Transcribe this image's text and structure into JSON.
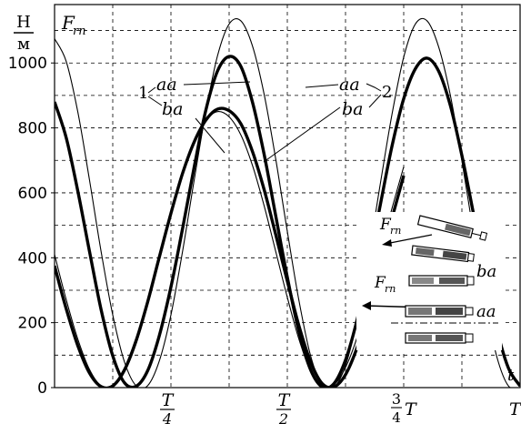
{
  "chart_data": {
    "type": "line",
    "ylabel_num": "Н",
    "ylabel_den": "м",
    "y_quantity": "F",
    "y_quantity_sub": "rn",
    "xlabel": "t",
    "yticks": [
      0,
      200,
      400,
      600,
      800,
      1000
    ],
    "xticks": [
      {
        "num": "T",
        "den": "4",
        "x": 0.25
      },
      {
        "num": "T",
        "den": "2",
        "x": 0.5
      },
      {
        "prefix_num": "3",
        "prefix_den": "4",
        "label": "T",
        "x": 0.75
      },
      {
        "label": "T",
        "x": 1.0
      }
    ],
    "xlim": [
      0,
      1
    ],
    "ylim": [
      0,
      1180
    ],
    "grid": true,
    "series": [
      {
        "group": "1",
        "name": "aa",
        "weight": "thin",
        "x": [
          0.0,
          0.025,
          0.05,
          0.075,
          0.1,
          0.125,
          0.15,
          0.175,
          0.2,
          0.225,
          0.25,
          0.275,
          0.3,
          0.325,
          0.35,
          0.375,
          0.4,
          0.425,
          0.45,
          0.475,
          0.5,
          0.525,
          0.55,
          0.575,
          0.6,
          0.625,
          0.65,
          0.675,
          0.7,
          0.725,
          0.75
        ],
        "y": [
          410,
          271,
          149,
          56,
          5,
          2,
          47,
          134,
          254,
          391,
          528,
          654,
          754,
          823,
          850,
          834,
          779,
          685,
          561,
          420,
          278,
          149,
          50,
          3,
          8,
          62,
          155,
          281,
          415,
          553,
          680
        ]
      },
      {
        "group": "1",
        "name": "ba",
        "weight": "thick",
        "x": [
          0.0,
          0.025,
          0.05,
          0.075,
          0.1,
          0.125,
          0.15,
          0.175,
          0.2,
          0.225,
          0.25,
          0.275,
          0.3,
          0.325,
          0.35,
          0.375,
          0.4,
          0.425,
          0.45,
          0.475,
          0.5,
          0.525,
          0.55,
          0.575,
          0.6,
          0.625,
          0.65,
          0.675,
          0.7,
          0.725,
          0.75
        ],
        "y": [
          375,
          243,
          129,
          45,
          3,
          5,
          54,
          144,
          264,
          402,
          537,
          660,
          757,
          824,
          858,
          853,
          813,
          728,
          611,
          472,
          328,
          190,
          79,
          12,
          2,
          40,
          124,
          243,
          380,
          522,
          653
        ]
      },
      {
        "group": "2",
        "name": "aa",
        "weight": "thin",
        "x": [
          0.0,
          0.025,
          0.05,
          0.075,
          0.1,
          0.125,
          0.15,
          0.175,
          0.2,
          0.225,
          0.25,
          0.275,
          0.3,
          0.325,
          0.35,
          0.375,
          0.4,
          0.425,
          0.45,
          0.475,
          0.5,
          0.525,
          0.55,
          0.575,
          0.6,
          0.625,
          0.65,
          0.675,
          0.7,
          0.725,
          0.75,
          0.775,
          0.8,
          0.825,
          0.85,
          0.875,
          0.9,
          0.925,
          0.95,
          0.975,
          1.0
        ],
        "y": [
          1075,
          1005,
          849,
          640,
          419,
          224,
          80,
          6,
          6,
          82,
          224,
          420,
          640,
          850,
          1022,
          1120,
          1130,
          1053,
          905,
          705,
          481,
          268,
          98,
          6,
          0,
          68,
          210,
          408,
          630,
          843,
          1018,
          1120,
          1130,
          1050,
          902,
          699,
          475,
          263,
          95,
          5,
          0
        ]
      },
      {
        "group": "2",
        "name": "ba",
        "weight": "thick",
        "x": [
          0.0,
          0.025,
          0.05,
          0.075,
          0.1,
          0.125,
          0.15,
          0.175,
          0.2,
          0.225,
          0.25,
          0.275,
          0.3,
          0.325,
          0.35,
          0.375,
          0.4,
          0.425,
          0.45,
          0.475,
          0.5,
          0.525,
          0.55,
          0.575,
          0.6,
          0.625,
          0.65,
          0.675,
          0.7,
          0.725,
          0.75,
          0.775,
          0.8,
          0.825,
          0.85,
          0.875,
          0.9,
          0.925,
          0.95,
          0.975,
          1.0
        ],
        "y": [
          880,
          770,
          605,
          420,
          240,
          98,
          15,
          4,
          52,
          160,
          310,
          490,
          680,
          855,
          975,
          1020,
          990,
          880,
          720,
          530,
          340,
          172,
          55,
          2,
          12,
          85,
          210,
          378,
          565,
          745,
          890,
          982,
          1015,
          975,
          870,
          715,
          535,
          350,
          180,
          60,
          5
        ]
      }
    ],
    "annotations": {
      "group1_label": "1",
      "group2_label": "2",
      "curve_labels": [
        "aa",
        "ba",
        "aa",
        "ba"
      ],
      "inset_force_label": "F",
      "inset_force_sub": "rn",
      "inset_labels": [
        "ba",
        "aa"
      ]
    }
  }
}
